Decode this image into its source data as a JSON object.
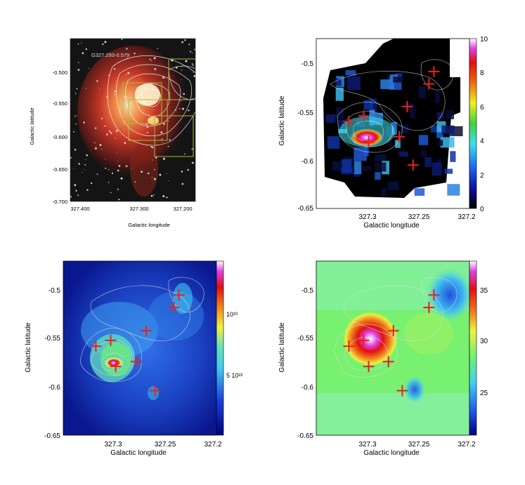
{
  "panels": {
    "a": {
      "source_label": "G327.293-0.579",
      "xlabel": "Galactic longitude",
      "ylabel": "Galactic latitude",
      "xticks": [
        "327.400",
        "327.300",
        "327.200"
      ],
      "yticks": [
        "-0.500",
        "-0.550",
        "-0.600",
        "-0.650",
        "-0.700"
      ]
    },
    "b": {
      "xlabel": "Galactic longitude",
      "ylabel": "Galactic latitude",
      "xticks": [
        "327.3",
        "327.25",
        "327.2"
      ],
      "yticks": [
        "-0.5",
        "-0.55",
        "-0.6",
        "-0.65"
      ],
      "cbar_ticks": [
        "0",
        "2",
        "4",
        "6",
        "8",
        "10"
      ]
    },
    "c": {
      "xlabel": "Galactic longitude",
      "ylabel": "Galactic latitude",
      "xticks": [
        "327.3",
        "327.25",
        "327.2"
      ],
      "yticks": [
        "-0.5",
        "-0.55",
        "-0.6",
        "-0.65"
      ],
      "cbar_ticks": [
        "10²³",
        "5 10²²"
      ]
    },
    "d": {
      "xlabel": "Galactic longitude",
      "ylabel": "Galactic latitude",
      "xticks": [
        "327.3",
        "327.25",
        "327.2"
      ],
      "yticks": [
        "-0.5",
        "-0.55",
        "-0.6",
        "-0.65"
      ],
      "cbar_ticks": [
        "35",
        "30",
        "25"
      ]
    }
  },
  "chart_data": [
    {
      "type": "heatmap",
      "panel": "a",
      "title": "G327.293-0.579",
      "xlabel": "Galactic longitude",
      "ylabel": "Galactic latitude",
      "xlim": [
        327.45,
        327.17
      ],
      "ylim": [
        -0.705,
        -0.46
      ],
      "colors": {
        "emission": "#d2452c",
        "contours": "#ffffff",
        "boxes": "#a4c03c"
      }
    },
    {
      "type": "heatmap",
      "panel": "b",
      "xlabel": "Galactic longitude",
      "ylabel": "Galactic latitude",
      "xlim": [
        327.35,
        327.195
      ],
      "ylim": [
        -0.65,
        -0.47
      ],
      "colorbar": {
        "min": 0,
        "max": 10
      },
      "markers": [
        {
          "l": 327.317,
          "b": -0.558
        },
        {
          "l": 327.302,
          "b": -0.552
        },
        {
          "l": 327.297,
          "b": -0.579
        },
        {
          "l": 327.266,
          "b": -0.574
        },
        {
          "l": 327.258,
          "b": -0.542
        },
        {
          "l": 327.252,
          "b": -0.604
        },
        {
          "l": 327.236,
          "b": -0.518
        },
        {
          "l": 327.231,
          "b": -0.505
        }
      ]
    },
    {
      "type": "heatmap",
      "panel": "c",
      "xlabel": "Galactic longitude",
      "ylabel": "Galactic latitude",
      "xlim": [
        327.35,
        327.195
      ],
      "ylim": [
        -0.65,
        -0.47
      ],
      "colorbar": {
        "ticks": [
          "5 10²²",
          "10²³"
        ]
      },
      "markers": [
        {
          "l": 327.317,
          "b": -0.558
        },
        {
          "l": 327.302,
          "b": -0.552
        },
        {
          "l": 327.297,
          "b": -0.579
        },
        {
          "l": 327.276,
          "b": -0.574
        },
        {
          "l": 327.266,
          "b": -0.542
        },
        {
          "l": 327.257,
          "b": -0.604
        },
        {
          "l": 327.238,
          "b": -0.518
        },
        {
          "l": 327.233,
          "b": -0.505
        }
      ]
    },
    {
      "type": "heatmap",
      "panel": "d",
      "xlabel": "Galactic longitude",
      "ylabel": "Galactic latitude",
      "xlim": [
        327.35,
        327.195
      ],
      "ylim": [
        -0.65,
        -0.47
      ],
      "colorbar": {
        "min": 21,
        "max": 37
      },
      "markers": [
        {
          "l": 327.317,
          "b": -0.558
        },
        {
          "l": 327.302,
          "b": -0.552
        },
        {
          "l": 327.297,
          "b": -0.579
        },
        {
          "l": 327.277,
          "b": -0.574
        },
        {
          "l": 327.272,
          "b": -0.542
        },
        {
          "l": 327.263,
          "b": -0.604
        },
        {
          "l": 327.236,
          "b": -0.518
        },
        {
          "l": 327.231,
          "b": -0.505
        }
      ]
    }
  ]
}
